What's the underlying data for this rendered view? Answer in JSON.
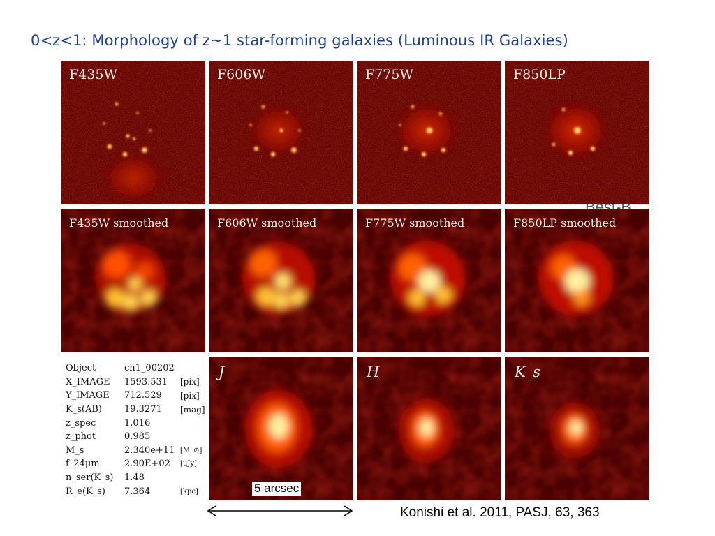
{
  "title": "0<z<1: Morphology of z~1 star-forming galaxies (Luminous IR Galaxies)",
  "panels": {
    "row1": [
      "F435W",
      "F606W",
      "F775W",
      "F850LP"
    ],
    "row2": [
      "F435W smoothed",
      "F606W smoothed",
      "F775W smoothed",
      "F850LP smoothed"
    ],
    "row3": [
      "J",
      "H",
      "K_s"
    ]
  },
  "overlay_text": "Best-B",
  "info": {
    "rows": [
      {
        "key": "Object",
        "value": "ch1_00202",
        "unit": ""
      },
      {
        "key": "X_IMAGE",
        "value": "1593.531",
        "unit": "[pix]"
      },
      {
        "key": "Y_IMAGE",
        "value": "712.529",
        "unit": "[pix]"
      },
      {
        "key": "K_s(AB)",
        "value": "19.3271",
        "unit": "[mag]"
      },
      {
        "key": "z_spec",
        "value": "1.016",
        "unit": ""
      },
      {
        "key": "z_phot",
        "value": "0.985",
        "unit": ""
      },
      {
        "key": "M_s",
        "value": "2.340e+11",
        "unit": "[M_⊙]"
      },
      {
        "key": "f_24μm",
        "value": "2.90E+02",
        "unit": "[μJy]"
      },
      {
        "key": "n_ser(K_s)",
        "value": "1.48",
        "unit": ""
      },
      {
        "key": "R_e(K_s)",
        "value": "7.364",
        "unit": "[kpc]"
      }
    ]
  },
  "scale_label": "5 arcsec",
  "citation": "Konishi et al. 2011, PASJ, 63, 363",
  "colors": {
    "title": "#1f3f8f",
    "panel_bg": "#4a0000",
    "hot": "#fff4a0"
  }
}
